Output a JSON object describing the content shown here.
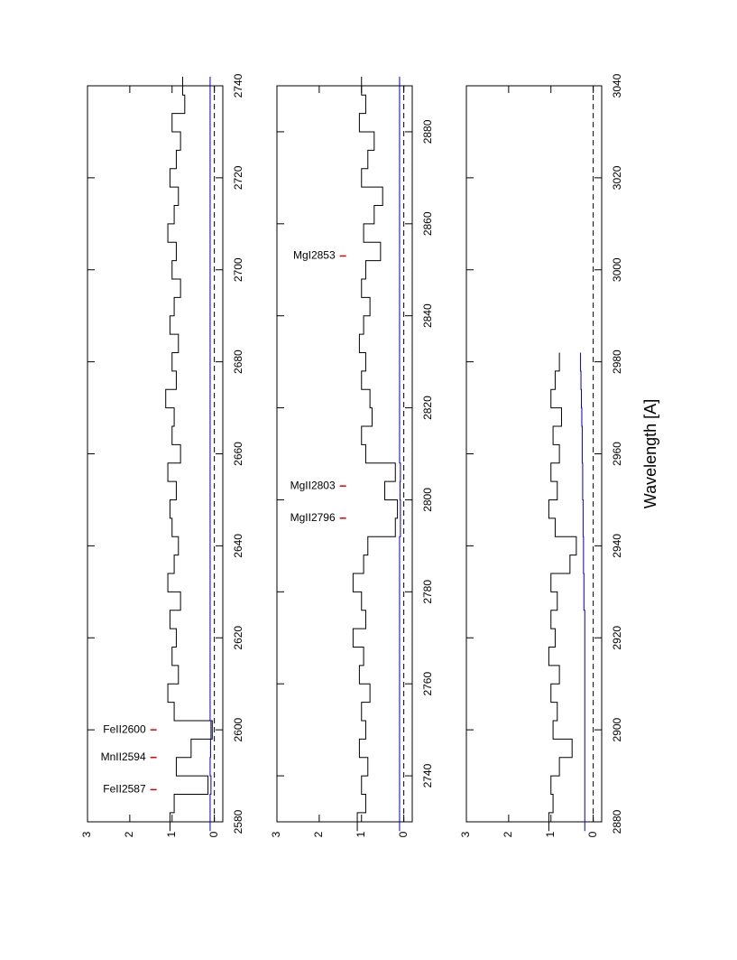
{
  "chart_data": [
    {
      "type": "step",
      "xlim": [
        2580,
        2740
      ],
      "xticks": [
        2580,
        2600,
        2620,
        2640,
        2660,
        2680,
        2700,
        2720,
        2740
      ],
      "ylim": [
        -0.2,
        3
      ],
      "yticks": [
        0,
        1,
        2,
        3
      ],
      "reference_line": 0,
      "x": [
        2580,
        2584,
        2588,
        2592,
        2596,
        2600,
        2604,
        2608,
        2612,
        2616,
        2620,
        2624,
        2628,
        2632,
        2636,
        2640,
        2644,
        2648,
        2652,
        2656,
        2660,
        2664,
        2668,
        2672,
        2676,
        2680,
        2684,
        2688,
        2692,
        2696,
        2700,
        2704,
        2708,
        2712,
        2716,
        2720,
        2724,
        2728,
        2732,
        2736,
        2740
      ],
      "series": [
        {
          "color": "#000000",
          "values": [
            1.05,
            0.95,
            0.15,
            0.9,
            0.55,
            0.05,
            0.95,
            1.1,
            0.85,
            1.0,
            0.9,
            1.05,
            0.8,
            1.1,
            0.95,
            0.85,
            1.0,
            1.05,
            0.9,
            1.1,
            0.8,
            1.0,
            0.95,
            1.15,
            0.9,
            1.0,
            0.85,
            1.05,
            0.95,
            0.8,
            1.0,
            0.9,
            1.1,
            0.95,
            0.85,
            1.05,
            0.9,
            0.8,
            1.0,
            0.7,
            0.75
          ]
        },
        {
          "color": "#0000cc",
          "values": [
            0.1,
            0.1,
            0.08,
            0.1,
            0.09,
            0.08,
            0.1,
            0.1,
            0.1,
            0.1,
            0.1,
            0.1,
            0.1,
            0.1,
            0.1,
            0.1,
            0.1,
            0.1,
            0.1,
            0.1,
            0.1,
            0.1,
            0.1,
            0.1,
            0.1,
            0.1,
            0.1,
            0.1,
            0.1,
            0.1,
            0.1,
            0.1,
            0.1,
            0.1,
            0.1,
            0.1,
            0.1,
            0.1,
            0.1,
            0.1,
            0.1
          ]
        }
      ],
      "lines": [
        {
          "label": "FeII2587",
          "x": 2587
        },
        {
          "label": "MnII2594",
          "x": 2594
        },
        {
          "label": "FeII2600",
          "x": 2600
        }
      ]
    },
    {
      "type": "step",
      "xlim": [
        2730,
        2890
      ],
      "xticks": [
        2740,
        2760,
        2780,
        2800,
        2820,
        2840,
        2860,
        2880
      ],
      "ylim": [
        -0.2,
        3
      ],
      "yticks": [
        0,
        1,
        2,
        3
      ],
      "reference_line": 0,
      "x": [
        2730,
        2734,
        2738,
        2742,
        2746,
        2750,
        2754,
        2758,
        2762,
        2766,
        2770,
        2774,
        2778,
        2782,
        2786,
        2790,
        2794,
        2798,
        2802,
        2806,
        2810,
        2814,
        2818,
        2822,
        2826,
        2830,
        2834,
        2838,
        2842,
        2846,
        2850,
        2854,
        2858,
        2862,
        2866,
        2870,
        2874,
        2878,
        2882,
        2886,
        2890
      ],
      "series": [
        {
          "color": "#000000",
          "values": [
            1.1,
            0.9,
            1.0,
            0.85,
            1.05,
            0.9,
            1.0,
            0.8,
            1.05,
            0.95,
            1.2,
            0.9,
            1.0,
            1.2,
            0.95,
            0.85,
            0.2,
            0.15,
            0.45,
            0.2,
            0.9,
            1.0,
            0.75,
            0.8,
            1.0,
            0.9,
            1.05,
            0.95,
            0.8,
            1.0,
            0.9,
            0.55,
            0.95,
            0.7,
            0.5,
            1.0,
            0.85,
            0.7,
            1.05,
            0.9,
            1.0
          ]
        },
        {
          "color": "#0000cc",
          "values": [
            0.1,
            0.1,
            0.1,
            0.1,
            0.1,
            0.1,
            0.1,
            0.1,
            0.1,
            0.1,
            0.1,
            0.1,
            0.1,
            0.1,
            0.1,
            0.1,
            0.08,
            0.08,
            0.09,
            0.08,
            0.1,
            0.1,
            0.1,
            0.1,
            0.1,
            0.1,
            0.1,
            0.1,
            0.1,
            0.1,
            0.1,
            0.1,
            0.1,
            0.1,
            0.1,
            0.1,
            0.1,
            0.1,
            0.1,
            0.1,
            0.1
          ]
        }
      ],
      "lines": [
        {
          "label": "MgII2796",
          "x": 2796
        },
        {
          "label": "MgII2803",
          "x": 2803
        },
        {
          "label": "MgI2853",
          "x": 2853
        }
      ]
    },
    {
      "type": "step",
      "xlim": [
        2880,
        3040
      ],
      "xticks": [
        2880,
        2900,
        2920,
        2940,
        2960,
        2980,
        3000,
        3020,
        3040
      ],
      "ylim": [
        -0.2,
        3
      ],
      "yticks": [
        0,
        1,
        2,
        3
      ],
      "reference_line": 0,
      "xlabel": "Wavelength [A]",
      "x": [
        2880,
        2884,
        2888,
        2892,
        2896,
        2900,
        2904,
        2908,
        2912,
        2916,
        2920,
        2924,
        2928,
        2932,
        2936,
        2940,
        2944,
        2948,
        2952,
        2956,
        2960,
        2964,
        2968,
        2972,
        2976,
        2980,
        2984,
        2988,
        2992,
        2996,
        3000,
        3004,
        3008,
        3012,
        3016,
        3020,
        3024,
        3028,
        3032,
        3036,
        3040
      ],
      "series": [
        {
          "color": "#000000",
          "values": [
            1.05,
            0.95,
            1.0,
            0.8,
            0.5,
            0.95,
            0.85,
            1.0,
            0.8,
            1.05,
            0.9,
            1.0,
            0.85,
            1.0,
            0.55,
            0.4,
            0.9,
            1.05,
            0.85,
            1.0,
            0.8,
            0.95,
            0.75,
            1.0,
            0.9,
            0.8,
            null,
            null,
            null,
            null,
            null,
            null,
            null,
            null,
            null,
            null,
            null,
            null,
            null,
            null,
            null
          ]
        },
        {
          "color": "#0000cc",
          "values": [
            0.2,
            0.2,
            0.2,
            0.2,
            0.2,
            0.2,
            0.2,
            0.2,
            0.2,
            0.2,
            0.2,
            0.2,
            0.22,
            0.22,
            0.23,
            0.23,
            0.24,
            0.24,
            0.25,
            0.25,
            0.26,
            0.26,
            0.27,
            0.28,
            0.29,
            0.3,
            null,
            null,
            null,
            null,
            null,
            null,
            null,
            null,
            null,
            null,
            null,
            null,
            null,
            null,
            null
          ]
        }
      ],
      "lines": []
    }
  ]
}
